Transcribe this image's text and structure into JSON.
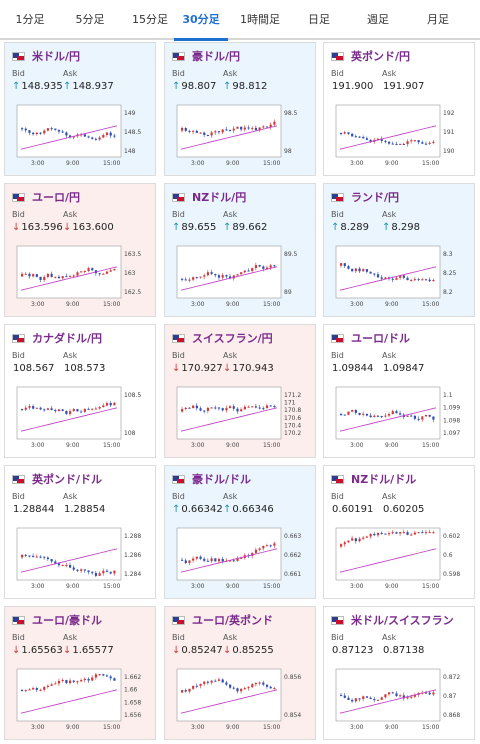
{
  "tabs": [
    {
      "label": "1分足",
      "active": false
    },
    {
      "label": "5分足",
      "active": false
    },
    {
      "label": "15分足",
      "active": false
    },
    {
      "label": "30分足",
      "active": true
    },
    {
      "label": "1時間足",
      "active": false
    },
    {
      "label": "日足",
      "active": false
    },
    {
      "label": "週足",
      "active": false
    },
    {
      "label": "月足",
      "active": false
    }
  ],
  "labels": {
    "bid": "Bid",
    "ask": "Ask"
  },
  "colors": {
    "up_arrow": "#1f8fb8",
    "down_arrow": "#d23a3a",
    "pair_title": "#7a2a8c",
    "active_tab": "#1f6fd1",
    "candle_up": "#d23a3a",
    "candle_down": "#2f4fb5",
    "ma_line": "#c23cc7"
  },
  "x_ticks": [
    "3:00",
    "9:00",
    "15:00"
  ],
  "cards": [
    {
      "pair": "米ドル/円",
      "flag": "us-flag",
      "trend": "up",
      "bid": "148.935",
      "ask": "148.937",
      "bid_arrow": "↑",
      "ask_arrow": "↑",
      "y_ticks": [
        "149",
        "148.5",
        "148"
      ]
    },
    {
      "pair": "豪ドル/円",
      "flag": "au-flag",
      "trend": "up",
      "bid": "98.807",
      "ask": "98.812",
      "bid_arrow": "↑",
      "ask_arrow": "↑",
      "y_ticks": [
        "98.5",
        "98"
      ]
    },
    {
      "pair": "英ポンド/円",
      "flag": "gb-flag",
      "trend": "none",
      "bid": "191.900",
      "ask": "191.907",
      "bid_arrow": "",
      "ask_arrow": "",
      "y_ticks": [
        "192",
        "191",
        "190"
      ]
    },
    {
      "pair": "ユーロ/円",
      "flag": "eu-flag",
      "trend": "down",
      "bid": "163.596",
      "ask": "163.600",
      "bid_arrow": "↓",
      "ask_arrow": "↓",
      "y_ticks": [
        "163.5",
        "163",
        "162.5"
      ]
    },
    {
      "pair": "NZドル/円",
      "flag": "nz-flag",
      "trend": "up",
      "bid": "89.655",
      "ask": "89.662",
      "bid_arrow": "↑",
      "ask_arrow": "↑",
      "y_ticks": [
        "89.5",
        "89"
      ]
    },
    {
      "pair": "ランド/円",
      "flag": "za-flag",
      "trend": "up",
      "bid": "8.289",
      "ask": "8.298",
      "bid_arrow": "↑",
      "ask_arrow": "↑",
      "y_ticks": [
        "8.3",
        "8.25",
        "8.2"
      ]
    },
    {
      "pair": "カナダドル/円",
      "flag": "ca-flag",
      "trend": "none",
      "bid": "108.567",
      "ask": "108.573",
      "bid_arrow": "",
      "ask_arrow": "",
      "y_ticks": [
        "108.5",
        "108"
      ]
    },
    {
      "pair": "スイスフラン/円",
      "flag": "ch-flag",
      "trend": "down",
      "bid": "170.927",
      "ask": "170.943",
      "bid_arrow": "↓",
      "ask_arrow": "↓",
      "y_ticks": [
        "171.2",
        "171",
        "170.8",
        "170.6",
        "170.4",
        "170.2"
      ]
    },
    {
      "pair": "ユーロ/ドル",
      "flag": "eu-flag",
      "trend": "none",
      "bid": "1.09844",
      "ask": "1.09847",
      "bid_arrow": "",
      "ask_arrow": "",
      "y_ticks": [
        "1.1",
        "1.099",
        "1.098",
        "1.097"
      ]
    },
    {
      "pair": "英ポンド/ドル",
      "flag": "gb-flag",
      "trend": "none",
      "bid": "1.28844",
      "ask": "1.28854",
      "bid_arrow": "",
      "ask_arrow": "",
      "y_ticks": [
        "1.288",
        "1.286",
        "1.284"
      ]
    },
    {
      "pair": "豪ドル/ドル",
      "flag": "au-flag",
      "trend": "up",
      "bid": "0.66342",
      "ask": "0.66346",
      "bid_arrow": "↑",
      "ask_arrow": "↑",
      "y_ticks": [
        "0.663",
        "0.662",
        "0.661"
      ]
    },
    {
      "pair": "NZドル/ドル",
      "flag": "nz-flag",
      "trend": "none",
      "bid": "0.60191",
      "ask": "0.60205",
      "bid_arrow": "",
      "ask_arrow": "",
      "y_ticks": [
        "0.602",
        "0.6",
        "0.598"
      ]
    },
    {
      "pair": "ユーロ/豪ドル",
      "flag": "eu-flag",
      "trend": "down",
      "bid": "1.65563",
      "ask": "1.65577",
      "bid_arrow": "↓",
      "ask_arrow": "↓",
      "y_ticks": [
        "1.662",
        "1.66",
        "1.658",
        "1.656"
      ]
    },
    {
      "pair": "ユーロ/英ポンド",
      "flag": "eu-flag",
      "trend": "down",
      "bid": "0.85247",
      "ask": "0.85255",
      "bid_arrow": "↓",
      "ask_arrow": "↓",
      "y_ticks": [
        "0.856",
        "0.854"
      ]
    },
    {
      "pair": "米ドル/スイスフラン",
      "flag": "us-flag",
      "trend": "none",
      "bid": "0.87123",
      "ask": "0.87138",
      "bid_arrow": "",
      "ask_arrow": "",
      "y_ticks": [
        "0.872",
        "0.87",
        "0.868"
      ]
    }
  ]
}
